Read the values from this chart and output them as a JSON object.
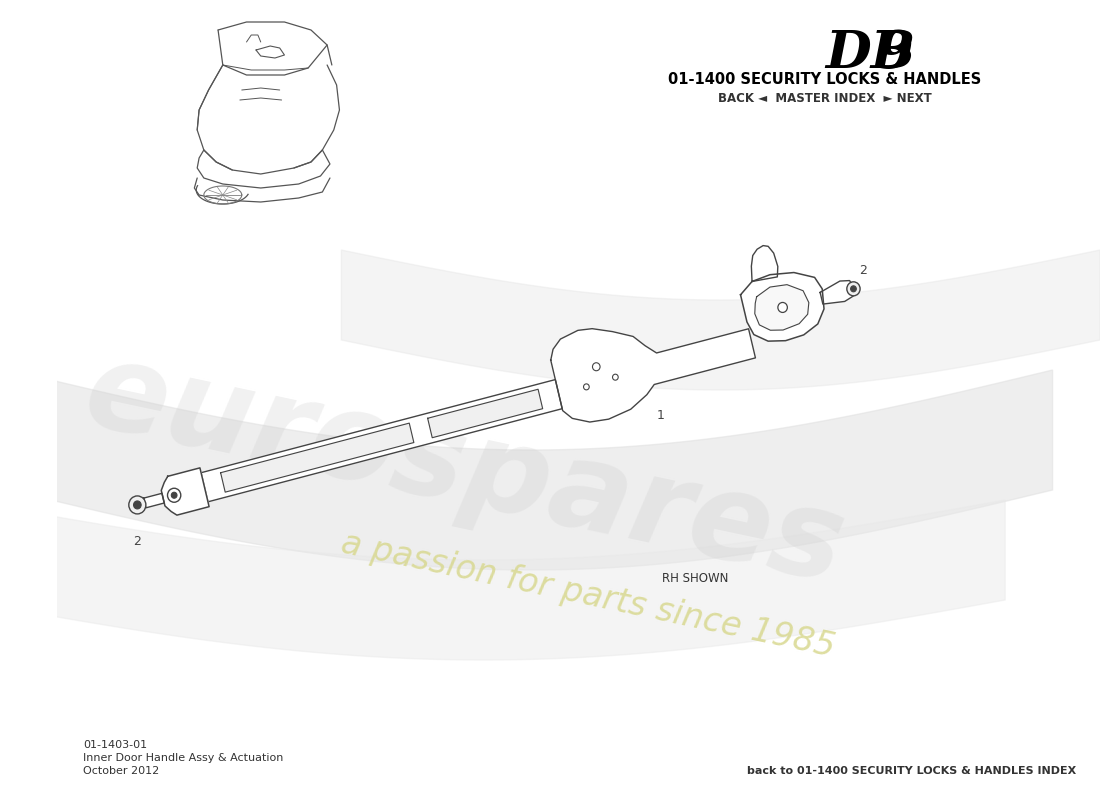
{
  "title_db9": "DB 9",
  "title_section": "01-1400 SECURITY LOCKS & HANDLES",
  "nav_text": "BACK ◄  MASTER INDEX  ► NEXT",
  "part_number": "01-1403-01",
  "part_name": "Inner Door Handle Assy & Actuation",
  "date": "October 2012",
  "back_link": "back to 01-1400 SECURITY LOCKS & HANDLES INDEX",
  "rh_shown": "RH SHOWN",
  "label1": "1",
  "label2": "2",
  "bg_color": "#ffffff",
  "line_color": "#444444",
  "title_color": "#000000",
  "nav_color": "#333333",
  "watermark_grey": "#d8d8d8",
  "watermark_yellow": "#e8e8a0"
}
